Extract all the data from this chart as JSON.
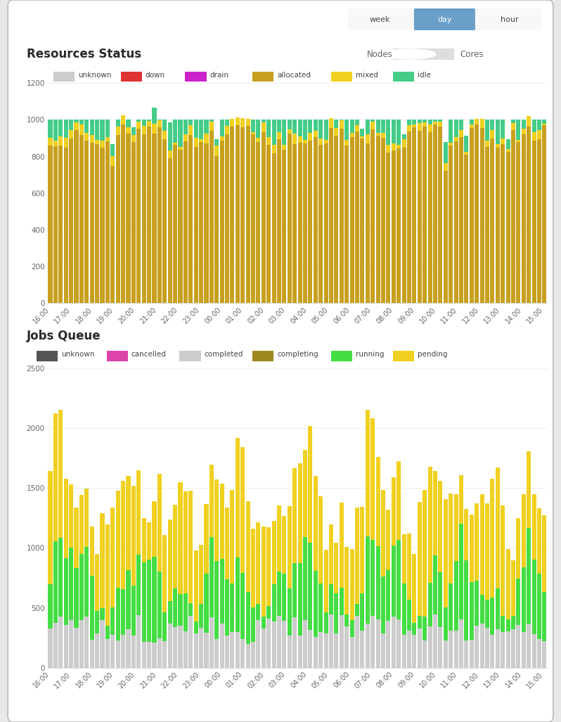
{
  "background_color": "#e8e8e8",
  "panel_color": "#ffffff",
  "title1": "Resources Status",
  "title2": "Jobs Queue",
  "time_labels": [
    "16:00",
    "17:00",
    "18:00",
    "19:00",
    "20:00",
    "21:00",
    "22:00",
    "23:00",
    "00:00",
    "01:00",
    "02:00",
    "03:00",
    "04:00",
    "05:00",
    "06:00",
    "07:00",
    "08:00",
    "09:00",
    "10:00",
    "11:00",
    "12:00",
    "13:00",
    "14:00",
    "15:00"
  ],
  "res_legend": [
    "unknown",
    "down",
    "drain",
    "allocated",
    "mixed",
    "idle"
  ],
  "res_colors": [
    "#cccccc",
    "#dd3333",
    "#cc22cc",
    "#c8a020",
    "#f0d020",
    "#44cc88"
  ],
  "jobs_legend": [
    "unknown",
    "cancelled",
    "completed",
    "completing",
    "running",
    "pending"
  ],
  "jobs_colors": [
    "#555555",
    "#dd44aa",
    "#cccccc",
    "#a08820",
    "#44dd44",
    "#f0d020"
  ],
  "button_color": "#6a9fc8",
  "ylim_res": [
    0,
    1200
  ],
  "ylim_jobs": [
    0,
    2500
  ],
  "res_yticks": [
    0,
    200,
    400,
    600,
    800,
    1000,
    1200
  ],
  "jobs_yticks": [
    0,
    500,
    1000,
    1500,
    2000,
    2500
  ]
}
